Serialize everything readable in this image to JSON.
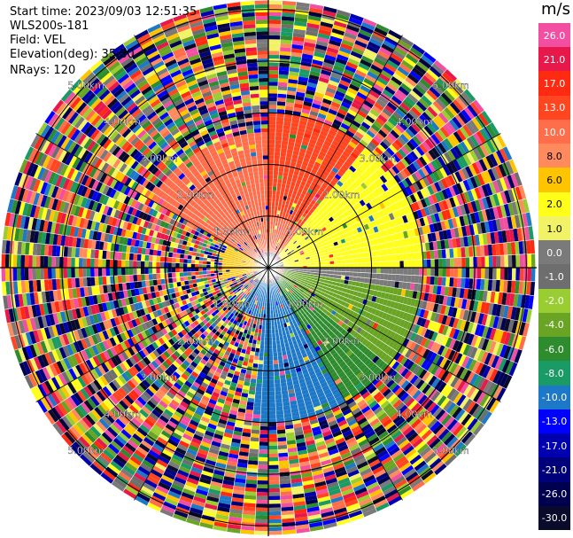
{
  "header": {
    "start_time": "Start time: 2023/09/03 12:51:35",
    "instrument": "WLS200s-181",
    "field": "Field: VEL",
    "elevation": "Elevation(deg): 35.30",
    "nrays": "NRays: 120"
  },
  "colorbar": {
    "unit": "m/s",
    "labels": [
      "26.0",
      "21.0",
      "17.0",
      "13.0",
      "10.0",
      "8.0",
      "6.0",
      "2.0",
      "1.0",
      "0.0",
      "-1.0",
      "-2.0",
      "-4.0",
      "-6.0",
      "-8.0",
      "-10.0",
      "-13.0",
      "-17.0",
      "-21.0",
      "-26.0",
      "-30.0"
    ],
    "colors": [
      "#f24fa3",
      "#e8184a",
      "#ff2a12",
      "#ff4620",
      "#ff6d4a",
      "#ff8a5e",
      "#ffc400",
      "#ffff1a",
      "#f2f266",
      "#7a7a7a",
      "#6e6e6e",
      "#9acd32",
      "#6aa424",
      "#2e8b2e",
      "#1a9a64",
      "#1e78c8",
      "#0000ff",
      "#0000b0",
      "#00007a",
      "#000050",
      "#0a0a2a"
    ]
  },
  "chart_data": {
    "type": "heatmap",
    "projection": "polar PPI",
    "field": "VEL",
    "units": "m/s",
    "n_rays": 120,
    "range_rings_km": [
      1.0,
      2.0,
      3.0,
      4.0,
      5.0
    ],
    "ring_labels": [
      "1.00km",
      "2.00km",
      "3.00km",
      "4.00km",
      "5.00km"
    ],
    "max_range_km": 5.2,
    "colorbar_ticks": [
      26.0,
      21.0,
      17.0,
      13.0,
      10.0,
      8.0,
      6.0,
      2.0,
      1.0,
      0.0,
      -1.0,
      -2.0,
      -4.0,
      -6.0,
      -8.0,
      -10.0,
      -13.0,
      -17.0,
      -21.0,
      -26.0,
      -30.0
    ],
    "coherent_sectors": [
      {
        "azimuth_deg": [
          0,
          40
        ],
        "range_km": [
          1.0,
          3.0
        ],
        "velocity_ms": 13.0
      },
      {
        "azimuth_deg": [
          0,
          40
        ],
        "range_km": [
          0.3,
          1.0
        ],
        "velocity_ms": 10.0
      },
      {
        "azimuth_deg": [
          300,
          360
        ],
        "range_km": [
          0.3,
          2.6
        ],
        "velocity_ms": 10.0
      },
      {
        "azimuth_deg": [
          40,
          90
        ],
        "range_km": [
          0.3,
          3.0
        ],
        "velocity_ms": 2.0
      },
      {
        "azimuth_deg": [
          255,
          300
        ],
        "range_km": [
          0.1,
          0.9
        ],
        "velocity_ms": 6.0
      },
      {
        "azimuth_deg": [
          90,
          100
        ],
        "range_km": [
          0.3,
          3.0
        ],
        "velocity_ms": 0.0
      },
      {
        "azimuth_deg": [
          100,
          130
        ],
        "range_km": [
          0.3,
          3.0
        ],
        "velocity_ms": -4.0
      },
      {
        "azimuth_deg": [
          130,
          150
        ],
        "range_km": [
          0.3,
          3.0
        ],
        "velocity_ms": -6.0
      },
      {
        "azimuth_deg": [
          150,
          185
        ],
        "range_km": [
          0.3,
          3.0
        ],
        "velocity_ms": -10.0
      },
      {
        "azimuth_deg": [
          185,
          215
        ],
        "range_km": [
          0.3,
          1.0
        ],
        "velocity_ms": -10.0
      }
    ]
  }
}
